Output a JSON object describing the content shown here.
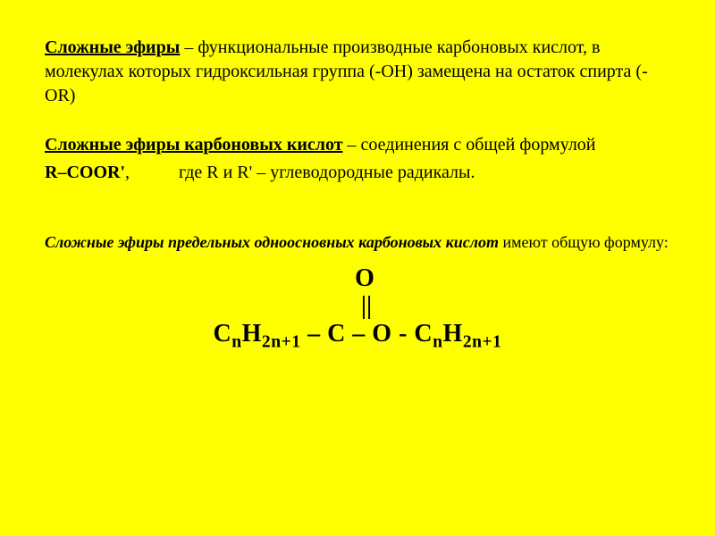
{
  "background_color": "#ffff00",
  "text_color": "#000000",
  "font_family": "Times New Roman",
  "definition1": {
    "term": "Сложные эфиры",
    "body": " – функциональные производные карбоновых кислот,  в молекулах которых гидроксильная группа (-ОН) замещена на остаток спирта (-OR)"
  },
  "definition2": {
    "term": "Сложные эфиры карбоновых кислот",
    "body": " – соединения с общей формулой",
    "formula": "R–COOR'",
    "formula_tail": ",",
    "radical_note": "где R и R' – углеводородные радикалы."
  },
  "saturated": {
    "title": "Сложные эфиры предельных одноосновных карбоновых кислот",
    "tail": " имеют общую формулу:"
  },
  "structure": {
    "oxygen": "O",
    "double_bond": "||",
    "left_c": "C",
    "left_n": "n",
    "left_h": "H",
    "left_2n1": "2n+1",
    "center": " – C – O - ",
    "right_c": "C",
    "right_n": "n",
    "right_h": "H",
    "right_2n1": "2n+1"
  }
}
